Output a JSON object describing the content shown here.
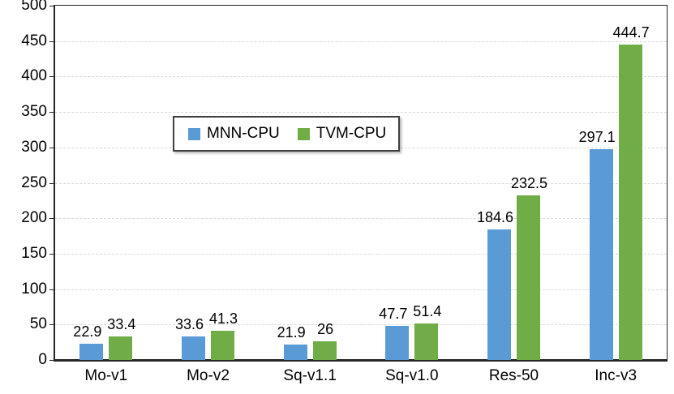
{
  "chart_data": {
    "type": "bar",
    "title": "",
    "xlabel": "",
    "ylabel": "",
    "categories": [
      "Mo-v1",
      "Mo-v2",
      "Sq-v1.1",
      "Sq-v1.0",
      "Res-50",
      "Inc-v3"
    ],
    "series": [
      {
        "name": "MNN-CPU",
        "color": "#5B9BD5",
        "values": [
          22.9,
          33.6,
          21.9,
          47.7,
          184.6,
          297.1
        ],
        "labels": [
          "22.9",
          "33.6",
          "21.9",
          "47.7",
          "184.6",
          "297.1"
        ],
        "label_dx": -5
      },
      {
        "name": "TVM-CPU",
        "color": "#70AD47",
        "values": [
          33.4,
          41.3,
          26,
          51.4,
          232.5,
          444.7
        ],
        "labels": [
          "33.4",
          "41.3",
          "26",
          "51.4",
          "232.5",
          "444.7"
        ],
        "label_dx": 1
      }
    ],
    "ylim": [
      0,
      500
    ],
    "yticks": [
      0,
      50,
      100,
      150,
      200,
      250,
      300,
      350,
      400,
      450,
      500
    ],
    "grid": "horizontal-dashed",
    "legend_position": "inside-upper-left-of-center"
  },
  "colors": {
    "bar_blue": "#5B9BD5",
    "bar_green": "#70AD47",
    "gridline": "#d9d9d9",
    "axis": "#262626",
    "text": "#000000",
    "legend_border": "#404040",
    "background": "#ffffff"
  }
}
